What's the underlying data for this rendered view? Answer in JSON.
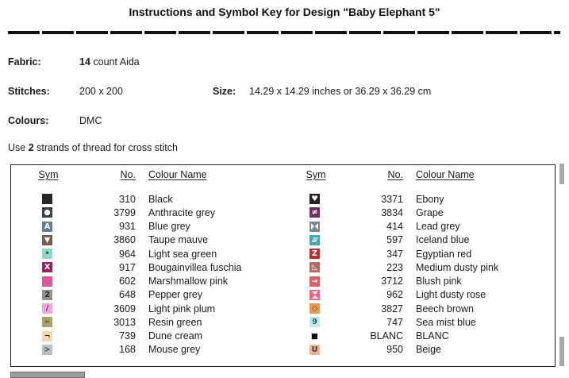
{
  "title": "Instructions and Symbol Key for Design \"Baby Elephant 5\"",
  "info": {
    "fabric_label": "Fabric:",
    "fabric_bold": "14",
    "fabric_rest": " count Aida",
    "stitches_label": "Stitches:",
    "stitches_value": "200 x 200",
    "size_label": "Size:",
    "size_value": "14.29 x 14.29 inches or 36.29 x 36.29 cm",
    "colours_label": "Colours:",
    "colours_value": "DMC",
    "strands_prefix": "Use ",
    "strands_bold": "2",
    "strands_suffix": " strands of thread for cross stitch"
  },
  "key": {
    "columns": [
      "Sym",
      "No.",
      "Colour Name"
    ],
    "left_rows": [
      {
        "symbol": {
          "name": "black-square-symbol",
          "bg": "#262626",
          "fg": "#262626",
          "glyph": "",
          "shape": ""
        },
        "no": "310",
        "name": "Black"
      },
      {
        "symbol": {
          "name": "circle-symbol",
          "bg": "#3c3c3e",
          "fg": "#ffffff",
          "glyph": "●",
          "shape": ""
        },
        "no": "3799",
        "name": "Anthracite grey"
      },
      {
        "symbol": {
          "name": "letter-a-symbol",
          "bg": "#5f7f9a",
          "fg": "#ffffff",
          "glyph": "A",
          "shape": ""
        },
        "no": "931",
        "name": "Blue grey"
      },
      {
        "symbol": {
          "name": "down-triangle-symbol",
          "bg": "#7a5a50",
          "fg": "#ffffff",
          "glyph": "▼",
          "shape": ""
        },
        "no": "3860",
        "name": "Taupe mauve"
      },
      {
        "symbol": {
          "name": "dot-symbol",
          "bg": "#8ed7c4",
          "fg": "#1f5f56",
          "glyph": "•",
          "shape": ""
        },
        "no": "964",
        "name": "Light sea green"
      },
      {
        "symbol": {
          "name": "x-symbol",
          "bg": "#9c2063",
          "fg": "#ffffff",
          "glyph": "X",
          "shape": ""
        },
        "no": "917",
        "name": "Bougainvillea fuschia"
      },
      {
        "symbol": {
          "name": "diagonal-split-symbol",
          "bg": "#e05598",
          "fg": "#e05598",
          "glyph": "◢",
          "shape": "diag"
        },
        "no": "602",
        "name": "Marshmallow pink"
      },
      {
        "symbol": {
          "name": "digit-2-symbol",
          "bg": "#949288",
          "fg": "#222222",
          "glyph": "2",
          "shape": ""
        },
        "no": "648",
        "name": "Pepper grey"
      },
      {
        "symbol": {
          "name": "slash-symbol",
          "bg": "#efa3d8",
          "fg": "#6b2a66",
          "glyph": "/",
          "shape": ""
        },
        "no": "3609",
        "name": "Light pink plum"
      },
      {
        "symbol": {
          "name": "dash-symbol",
          "bg": "#a8a266",
          "fg": "#33331f",
          "glyph": "−",
          "shape": ""
        },
        "no": "3013",
        "name": "Resin green"
      },
      {
        "symbol": {
          "name": "corner-symbol",
          "bg": "#f6d8ab",
          "fg": "#3a2f22",
          "glyph": "¬",
          "shape": ""
        },
        "no": "739",
        "name": "Dune cream"
      },
      {
        "symbol": {
          "name": "greater-than-symbol",
          "bg": "#b7bec4",
          "fg": "#3f4a55",
          "glyph": ">",
          "shape": ""
        },
        "no": "168",
        "name": "Mouse grey"
      }
    ],
    "right_rows": [
      {
        "symbol": {
          "name": "heart-symbol",
          "bg": "#2b2220",
          "fg": "#ffffff",
          "glyph": "♥",
          "shape": ""
        },
        "no": "3371",
        "name": "Ebony"
      },
      {
        "symbol": {
          "name": "not-equal-symbol",
          "bg": "#6d3263",
          "fg": "#ffffff",
          "glyph": "≠",
          "shape": ""
        },
        "no": "3834",
        "name": "Grape"
      },
      {
        "symbol": {
          "name": "bowtie-symbol",
          "bg": "#7d8590",
          "fg": "#ffffff",
          "glyph": "",
          "shape": "bowtie"
        },
        "no": "414",
        "name": "Lead grey"
      },
      {
        "symbol": {
          "name": "triple-slash-symbol",
          "bg": "#48a8ad",
          "fg": "#ffffff",
          "glyph": "≡",
          "shape": "skew"
        },
        "no": "597",
        "name": "Iceland blue"
      },
      {
        "symbol": {
          "name": "letter-z-symbol",
          "bg": "#b53036",
          "fg": "#ffffff",
          "glyph": "Z",
          "shape": ""
        },
        "no": "347",
        "name": "Egyptian red"
      },
      {
        "symbol": {
          "name": "triangle-outline-symbol",
          "bg": "#b26a66",
          "fg": "#ffffff",
          "glyph": "◺",
          "shape": ""
        },
        "no": "223",
        "name": "Medium dusty pink"
      },
      {
        "symbol": {
          "name": "arrow-right-symbol",
          "bg": "#d4646a",
          "fg": "#ffffff",
          "glyph": "→",
          "shape": ""
        },
        "no": "3712",
        "name": "Blush pink"
      },
      {
        "symbol": {
          "name": "hourglass-symbol",
          "bg": "#e4698c",
          "fg": "#ffffff",
          "glyph": "",
          "shape": "hourglass"
        },
        "no": "962",
        "name": "Light dusty rose"
      },
      {
        "symbol": {
          "name": "diamond-outline-symbol",
          "bg": "#e39a5c",
          "fg": "#7a4a14",
          "glyph": "◇",
          "shape": ""
        },
        "no": "3827",
        "name": "Beech brown"
      },
      {
        "symbol": {
          "name": "digit-9-symbol",
          "bg": "#c4e6e6",
          "fg": "#1f6272",
          "glyph": "9",
          "shape": ""
        },
        "no": "747",
        "name": "Sea mist blue"
      },
      {
        "symbol": {
          "name": "small-black-square-symbol",
          "bg": "#ffffff",
          "fg": "#111111",
          "glyph": "■",
          "shape": ""
        },
        "no": "BLANC",
        "name": "BLANC"
      },
      {
        "symbol": {
          "name": "letter-u-symbol",
          "bg": "#e7b69a",
          "fg": "#4a2e24",
          "glyph": "U",
          "shape": ""
        },
        "no": "950",
        "name": "Beige"
      }
    ]
  }
}
